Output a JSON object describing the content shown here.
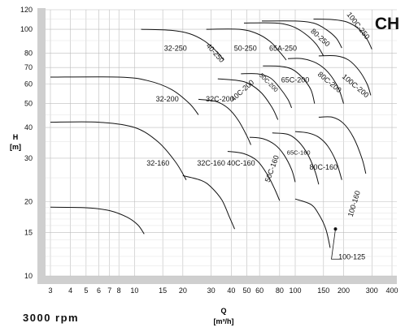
{
  "chart_data": {
    "type": "line",
    "title": "CH",
    "speed": "3000 rpm",
    "xlabel": "Q",
    "xunit": "[m³/h]",
    "ylabel": "H",
    "yunit": "[m]",
    "xscale": "log",
    "yscale": "log",
    "xlim": [
      3,
      400
    ],
    "ylim": [
      10,
      120
    ],
    "xticks": [
      3,
      4,
      5,
      6,
      7,
      8,
      10,
      15,
      20,
      30,
      40,
      50,
      60,
      80,
      100,
      150,
      200,
      300,
      400
    ],
    "xtick_labels": [
      "3",
      "4",
      "5",
      "6",
      "7",
      "8",
      "10",
      "15",
      "20",
      "30",
      "40",
      "50",
      "60",
      "80",
      "100",
      "150",
      "200",
      "300",
      "400"
    ],
    "yticks": [
      10,
      15,
      20,
      30,
      40,
      50,
      60,
      70,
      80,
      100,
      120
    ],
    "ytick_labels": [
      "10",
      "15",
      "20",
      "30",
      "40",
      "50",
      "60",
      "70",
      "80",
      "100",
      "120"
    ],
    "grid": true,
    "series": [
      {
        "name": "32-160",
        "points": [
          [
            3,
            19
          ],
          [
            5,
            18.9
          ],
          [
            7,
            18.4
          ],
          [
            9,
            17.3
          ],
          [
            10.5,
            16.1
          ],
          [
            11.5,
            14.8
          ]
        ]
      },
      {
        "name": "32-200",
        "points": [
          [
            3,
            42
          ],
          [
            6,
            42
          ],
          [
            10,
            40
          ],
          [
            14,
            35
          ],
          [
            18,
            29
          ],
          [
            21,
            24.5
          ]
        ]
      },
      {
        "name": "32-250",
        "points": [
          [
            3,
            64
          ],
          [
            8,
            64
          ],
          [
            12,
            62
          ],
          [
            17,
            57
          ],
          [
            22,
            50
          ],
          [
            25,
            45
          ]
        ]
      },
      {
        "name": "40-250",
        "points": [
          [
            11,
            100
          ],
          [
            17,
            99
          ],
          [
            22,
            96
          ],
          [
            27,
            90
          ],
          [
            32,
            82
          ],
          [
            36,
            75
          ]
        ]
      },
      {
        "name": "32C-160",
        "points": [
          [
            20,
            25.5
          ],
          [
            26,
            24.4
          ],
          [
            30,
            22.9
          ],
          [
            35,
            20.3
          ],
          [
            39,
            17.3
          ],
          [
            42,
            15.5
          ]
        ]
      },
      {
        "name": "32C-200",
        "points": [
          [
            25,
            52
          ],
          [
            32,
            51
          ],
          [
            38,
            48
          ],
          [
            44,
            43
          ],
          [
            50,
            37
          ],
          [
            53,
            34
          ]
        ]
      },
      {
        "name": "50-250",
        "points": [
          [
            28,
            100
          ],
          [
            45,
            100
          ],
          [
            58,
            96
          ],
          [
            70,
            89
          ],
          [
            80,
            81
          ],
          [
            88,
            75
          ]
        ]
      },
      {
        "name": "40C-160",
        "points": [
          [
            38,
            32
          ],
          [
            48,
            31.3
          ],
          [
            58,
            29.3
          ],
          [
            67,
            25.8
          ],
          [
            75,
            22.3
          ],
          [
            80,
            20.2
          ]
        ]
      },
      {
        "name": "40C-200",
        "points": [
          [
            33,
            63
          ],
          [
            44,
            62
          ],
          [
            52,
            60
          ],
          [
            62,
            55
          ],
          [
            72,
            48
          ],
          [
            78,
            43
          ]
        ]
      },
      {
        "name": "50C-160",
        "points": [
          [
            52,
            36.5
          ],
          [
            63,
            36
          ],
          [
            75,
            34
          ],
          [
            85,
            31
          ],
          [
            95,
            27
          ],
          [
            100,
            24
          ]
        ]
      },
      {
        "name": "50C-200",
        "points": [
          [
            46,
            66
          ],
          [
            58,
            66
          ],
          [
            70,
            63.5
          ],
          [
            80,
            58
          ],
          [
            90,
            52
          ],
          [
            95,
            48
          ]
        ]
      },
      {
        "name": "65A-250",
        "points": [
          [
            48,
            106
          ],
          [
            75,
            106
          ],
          [
            95,
            103
          ],
          [
            115,
            96
          ],
          [
            135,
            87
          ],
          [
            150,
            78
          ]
        ]
      },
      {
        "name": "65C-160",
        "points": [
          [
            72,
            38
          ],
          [
            90,
            37.5
          ],
          [
            105,
            35
          ],
          [
            120,
            31
          ],
          [
            133,
            26.5
          ],
          [
            140,
            23.5
          ]
        ]
      },
      {
        "name": "65C-200",
        "points": [
          [
            63,
            71
          ],
          [
            80,
            70.8
          ],
          [
            95,
            69
          ],
          [
            110,
            64
          ],
          [
            125,
            57
          ],
          [
            132,
            50
          ]
        ]
      },
      {
        "name": "80-250",
        "points": [
          [
            62,
            108
          ],
          [
            100,
            108
          ],
          [
            130,
            106
          ],
          [
            155,
            100
          ],
          [
            180,
            92
          ],
          [
            195,
            84
          ]
        ]
      },
      {
        "name": "100-125",
        "points": [
          [
            100,
            20.5
          ],
          [
            125,
            19.5
          ],
          [
            140,
            17.8
          ],
          [
            155,
            15.5
          ],
          [
            165,
            13
          ]
        ]
      },
      {
        "name": "80C-160",
        "points": [
          [
            100,
            38.5
          ],
          [
            120,
            38
          ],
          [
            140,
            36.5
          ],
          [
            160,
            33.5
          ],
          [
            180,
            29
          ],
          [
            195,
            24.5
          ]
        ]
      },
      {
        "name": "80C-200",
        "points": [
          [
            90,
            76
          ],
          [
            110,
            76
          ],
          [
            135,
            73
          ],
          [
            160,
            67
          ],
          [
            185,
            58
          ],
          [
            200,
            50
          ]
        ]
      },
      {
        "name": "100C-250",
        "points": [
          [
            130,
            110
          ],
          [
            170,
            109.5
          ],
          [
            210,
            107
          ],
          [
            250,
            100
          ],
          [
            280,
            91
          ],
          [
            300,
            83
          ]
        ]
      },
      {
        "name": "100C-200",
        "points": [
          [
            140,
            78
          ],
          [
            180,
            78
          ],
          [
            215,
            75
          ],
          [
            250,
            68
          ],
          [
            280,
            60
          ],
          [
            295,
            54
          ]
        ]
      },
      {
        "name": "100-160",
        "points": [
          [
            140,
            44
          ],
          [
            170,
            44
          ],
          [
            200,
            41.5
          ],
          [
            230,
            36.5
          ],
          [
            260,
            30
          ],
          [
            275,
            26
          ]
        ]
      }
    ],
    "labels": [
      "32-250",
      "40-250",
      "50-250",
      "65A-250",
      "80-250",
      "100C-250",
      "32-200",
      "32C-200",
      "40C-200",
      "50C-200",
      "65C-200",
      "80C-200",
      "100C-200",
      "32-160",
      "32C-160",
      "40C-160",
      "50C-160",
      "65C-160",
      "80C-160",
      "100-160",
      "100-125"
    ]
  }
}
